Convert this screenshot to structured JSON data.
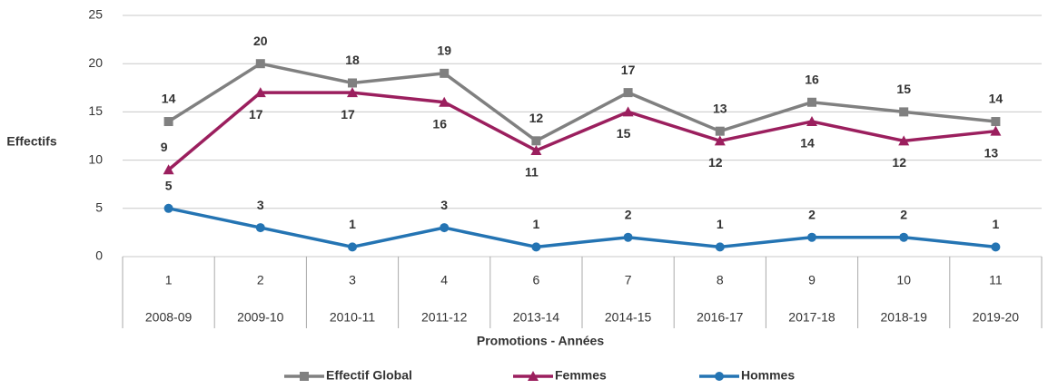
{
  "chart_data": {
    "type": "line",
    "y_label": "Effectifs",
    "x_label": "Promotions - Années",
    "promotions": [
      1,
      2,
      3,
      4,
      6,
      7,
      8,
      9,
      10,
      11
    ],
    "categories": [
      "2008-09",
      "2009-10",
      "2010-11",
      "2011-12",
      "2013-14",
      "2014-15",
      "2016-17",
      "2017-18",
      "2018-19",
      "2019-20"
    ],
    "series": [
      {
        "name": "Effectif Global",
        "color": "#808080",
        "marker": "square",
        "values": [
          14,
          20,
          18,
          19,
          12,
          17,
          13,
          16,
          15,
          14
        ]
      },
      {
        "name": "Femmes",
        "color": "#9b1f5e",
        "marker": "triangle",
        "values": [
          9,
          17,
          17,
          16,
          11,
          15,
          12,
          14,
          12,
          13
        ]
      },
      {
        "name": "Hommes",
        "color": "#2474b3",
        "marker": "circle",
        "values": [
          5,
          3,
          1,
          3,
          1,
          2,
          1,
          2,
          2,
          1
        ]
      }
    ],
    "ylim": [
      0,
      25
    ],
    "yticks": [
      0,
      5,
      10,
      15,
      20,
      25
    ],
    "grid": true,
    "legend": "bottom"
  }
}
